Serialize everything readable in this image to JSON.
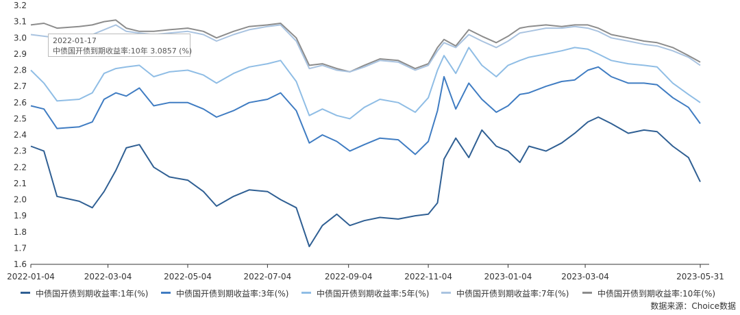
{
  "chart_data": {
    "type": "line",
    "ylim": [
      1.6,
      3.2
    ],
    "yticks": [
      "1.6",
      "1.7",
      "1.8",
      "1.9",
      "2.0",
      "2.1",
      "2.2",
      "2.3",
      "2.4",
      "2.5",
      "2.6",
      "2.7",
      "2.8",
      "2.9",
      "3.0",
      "3.1",
      "3.2"
    ],
    "xticks": [
      "2022-01-04",
      "2022-03-04",
      "2022-05-04",
      "2022-07-04",
      "2022-09-04",
      "2022-11-04",
      "2023-01-04",
      "2023-03-04",
      "2023-05-31"
    ],
    "x_start": "2022-01-04",
    "x_end": "2023-05-31",
    "grid": false,
    "legend_position": "bottom",
    "series": [
      {
        "name": "中债国开债到期收益率:1年(%)",
        "color": "#2f5f93",
        "x": [
          "2022-01-04",
          "2022-01-14",
          "2022-01-24",
          "2022-02-10",
          "2022-02-20",
          "2022-03-01",
          "2022-03-10",
          "2022-03-18",
          "2022-03-28",
          "2022-04-08",
          "2022-04-20",
          "2022-05-04",
          "2022-05-16",
          "2022-05-26",
          "2022-06-08",
          "2022-06-20",
          "2022-07-04",
          "2022-07-14",
          "2022-07-26",
          "2022-08-05",
          "2022-08-15",
          "2022-08-26",
          "2022-09-05",
          "2022-09-16",
          "2022-09-28",
          "2022-10-12",
          "2022-10-25",
          "2022-11-04",
          "2022-11-11",
          "2022-11-16",
          "2022-11-25",
          "2022-12-05",
          "2022-12-15",
          "2022-12-26",
          "2023-01-04",
          "2023-01-13",
          "2023-01-20",
          "2023-02-02",
          "2023-02-14",
          "2023-02-24",
          "2023-03-06",
          "2023-03-14",
          "2023-03-24",
          "2023-04-06",
          "2023-04-18",
          "2023-04-28",
          "2023-05-10",
          "2023-05-22",
          "2023-05-31"
        ],
        "values": [
          2.33,
          2.3,
          2.02,
          1.99,
          1.95,
          2.05,
          2.18,
          2.32,
          2.34,
          2.2,
          2.14,
          2.12,
          2.05,
          1.96,
          2.02,
          2.06,
          2.05,
          2.0,
          1.95,
          1.71,
          1.84,
          1.91,
          1.84,
          1.87,
          1.89,
          1.88,
          1.9,
          1.91,
          1.98,
          2.25,
          2.38,
          2.26,
          2.43,
          2.33,
          2.3,
          2.23,
          2.33,
          2.3,
          2.35,
          2.41,
          2.48,
          2.51,
          2.47,
          2.41,
          2.43,
          2.42,
          2.33,
          2.26,
          2.11
        ]
      },
      {
        "name": "中债国开债到期收益率:3年(%)",
        "color": "#3f7cc2",
        "x": [
          "2022-01-04",
          "2022-01-14",
          "2022-01-24",
          "2022-02-10",
          "2022-02-20",
          "2022-03-01",
          "2022-03-10",
          "2022-03-18",
          "2022-03-28",
          "2022-04-08",
          "2022-04-20",
          "2022-05-04",
          "2022-05-16",
          "2022-05-26",
          "2022-06-08",
          "2022-06-20",
          "2022-07-04",
          "2022-07-14",
          "2022-07-26",
          "2022-08-05",
          "2022-08-15",
          "2022-08-26",
          "2022-09-05",
          "2022-09-16",
          "2022-09-28",
          "2022-10-12",
          "2022-10-25",
          "2022-11-04",
          "2022-11-11",
          "2022-11-16",
          "2022-11-25",
          "2022-12-05",
          "2022-12-15",
          "2022-12-26",
          "2023-01-04",
          "2023-01-13",
          "2023-01-20",
          "2023-02-02",
          "2023-02-14",
          "2023-02-24",
          "2023-03-06",
          "2023-03-14",
          "2023-03-24",
          "2023-04-06",
          "2023-04-18",
          "2023-04-28",
          "2023-05-10",
          "2023-05-22",
          "2023-05-31"
        ],
        "values": [
          2.58,
          2.56,
          2.44,
          2.45,
          2.48,
          2.62,
          2.66,
          2.64,
          2.69,
          2.58,
          2.6,
          2.6,
          2.56,
          2.51,
          2.55,
          2.6,
          2.62,
          2.66,
          2.55,
          2.35,
          2.4,
          2.36,
          2.3,
          2.34,
          2.38,
          2.37,
          2.28,
          2.36,
          2.55,
          2.76,
          2.56,
          2.72,
          2.62,
          2.54,
          2.58,
          2.65,
          2.66,
          2.7,
          2.73,
          2.74,
          2.8,
          2.82,
          2.76,
          2.72,
          2.72,
          2.71,
          2.63,
          2.57,
          2.47
        ]
      },
      {
        "name": "中债国开债到期收益率:5年(%)",
        "color": "#8fbde5",
        "x": [
          "2022-01-04",
          "2022-01-14",
          "2022-01-24",
          "2022-02-10",
          "2022-02-20",
          "2022-03-01",
          "2022-03-10",
          "2022-03-18",
          "2022-03-28",
          "2022-04-08",
          "2022-04-20",
          "2022-05-04",
          "2022-05-16",
          "2022-05-26",
          "2022-06-08",
          "2022-06-20",
          "2022-07-04",
          "2022-07-14",
          "2022-07-26",
          "2022-08-05",
          "2022-08-15",
          "2022-08-26",
          "2022-09-05",
          "2022-09-16",
          "2022-09-28",
          "2022-10-12",
          "2022-10-25",
          "2022-11-04",
          "2022-11-11",
          "2022-11-16",
          "2022-11-25",
          "2022-12-05",
          "2022-12-15",
          "2022-12-26",
          "2023-01-04",
          "2023-01-13",
          "2023-01-20",
          "2023-02-02",
          "2023-02-14",
          "2023-02-24",
          "2023-03-06",
          "2023-03-14",
          "2023-03-24",
          "2023-04-06",
          "2023-04-18",
          "2023-04-28",
          "2023-05-10",
          "2023-05-22",
          "2023-05-31"
        ],
        "values": [
          2.8,
          2.72,
          2.61,
          2.62,
          2.66,
          2.78,
          2.81,
          2.82,
          2.83,
          2.76,
          2.79,
          2.8,
          2.77,
          2.72,
          2.78,
          2.82,
          2.84,
          2.86,
          2.73,
          2.52,
          2.56,
          2.52,
          2.5,
          2.57,
          2.62,
          2.6,
          2.54,
          2.63,
          2.8,
          2.89,
          2.78,
          2.94,
          2.83,
          2.76,
          2.83,
          2.86,
          2.88,
          2.9,
          2.92,
          2.94,
          2.93,
          2.9,
          2.86,
          2.84,
          2.83,
          2.82,
          2.72,
          2.65,
          2.6
        ]
      },
      {
        "name": "中债国开债到期收益率:7年(%)",
        "color": "#a9c3e0",
        "x": [
          "2022-01-04",
          "2022-01-14",
          "2022-01-24",
          "2022-02-10",
          "2022-02-20",
          "2022-03-01",
          "2022-03-10",
          "2022-03-18",
          "2022-03-28",
          "2022-04-08",
          "2022-04-20",
          "2022-05-04",
          "2022-05-16",
          "2022-05-26",
          "2022-06-08",
          "2022-06-20",
          "2022-07-04",
          "2022-07-14",
          "2022-07-26",
          "2022-08-05",
          "2022-08-15",
          "2022-08-26",
          "2022-09-05",
          "2022-09-16",
          "2022-09-28",
          "2022-10-12",
          "2022-10-25",
          "2022-11-04",
          "2022-11-11",
          "2022-11-16",
          "2022-11-25",
          "2022-12-05",
          "2022-12-15",
          "2022-12-26",
          "2023-01-04",
          "2023-01-13",
          "2023-01-20",
          "2023-02-02",
          "2023-02-14",
          "2023-02-24",
          "2023-03-06",
          "2023-03-14",
          "2023-03-24",
          "2023-04-06",
          "2023-04-18",
          "2023-04-28",
          "2023-05-10",
          "2023-05-22",
          "2023-05-31"
        ],
        "values": [
          3.02,
          3.01,
          3.0,
          3.01,
          3.02,
          3.05,
          3.08,
          3.04,
          3.03,
          3.02,
          3.03,
          3.04,
          3.02,
          2.98,
          3.02,
          3.05,
          3.07,
          3.08,
          2.98,
          2.81,
          2.83,
          2.8,
          2.79,
          2.82,
          2.86,
          2.85,
          2.8,
          2.83,
          2.92,
          2.97,
          2.94,
          3.02,
          2.98,
          2.94,
          2.98,
          3.03,
          3.04,
          3.06,
          3.06,
          3.07,
          3.06,
          3.04,
          3.0,
          2.98,
          2.96,
          2.95,
          2.92,
          2.88,
          2.83
        ]
      },
      {
        "name": "中债国开债到期收益率:10年(%)",
        "color": "#8c8c8c",
        "x": [
          "2022-01-04",
          "2022-01-14",
          "2022-01-24",
          "2022-02-10",
          "2022-02-20",
          "2022-03-01",
          "2022-03-10",
          "2022-03-18",
          "2022-03-28",
          "2022-04-08",
          "2022-04-20",
          "2022-05-04",
          "2022-05-16",
          "2022-05-26",
          "2022-06-08",
          "2022-06-20",
          "2022-07-04",
          "2022-07-14",
          "2022-07-26",
          "2022-08-05",
          "2022-08-15",
          "2022-08-26",
          "2022-09-05",
          "2022-09-16",
          "2022-09-28",
          "2022-10-12",
          "2022-10-25",
          "2022-11-04",
          "2022-11-11",
          "2022-11-16",
          "2022-11-25",
          "2022-12-05",
          "2022-12-15",
          "2022-12-26",
          "2023-01-04",
          "2023-01-13",
          "2023-01-20",
          "2023-02-02",
          "2023-02-14",
          "2023-02-24",
          "2023-03-06",
          "2023-03-14",
          "2023-03-24",
          "2023-04-06",
          "2023-04-18",
          "2023-04-28",
          "2023-05-10",
          "2023-05-22",
          "2023-05-31"
        ],
        "values": [
          3.08,
          3.09,
          3.06,
          3.07,
          3.08,
          3.1,
          3.11,
          3.06,
          3.04,
          3.04,
          3.05,
          3.06,
          3.04,
          3.0,
          3.04,
          3.07,
          3.08,
          3.09,
          3.0,
          2.83,
          2.84,
          2.81,
          2.79,
          2.83,
          2.87,
          2.86,
          2.81,
          2.84,
          2.94,
          2.99,
          2.95,
          3.05,
          3.01,
          2.97,
          3.01,
          3.06,
          3.07,
          3.08,
          3.07,
          3.08,
          3.08,
          3.06,
          3.02,
          3.0,
          2.98,
          2.97,
          2.94,
          2.89,
          2.85
        ]
      }
    ]
  },
  "tooltip": {
    "date": "2022-01-17",
    "text": "中债国开债到期收益率:10年  3.0857 (%)"
  },
  "source": "数据来源：Choice数据"
}
